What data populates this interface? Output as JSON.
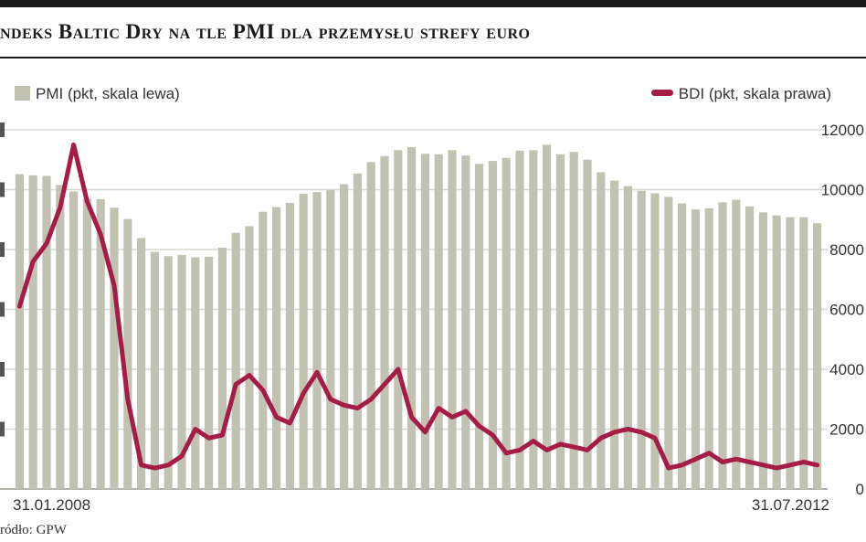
{
  "title": "ndeks Baltic Dry na tle PMI dla przemysłu strefy euro",
  "source": "ródło: GPW",
  "colors": {
    "pmi": "#c2c2b2",
    "bdi": "#a51c45",
    "grid": "#d8d8d0",
    "text": "#333333"
  },
  "chart_data": {
    "type": "bar",
    "legend_placement": "top",
    "grid": true,
    "series": [
      {
        "name": "PMI (pkt, skala lewa)",
        "type": "bar",
        "axis": "left",
        "values": [
          52.6,
          52.4,
          52.3,
          50.8,
          49.7,
          48.5,
          48.4,
          47.0,
          45.1,
          41.9,
          39.6,
          38.9,
          39.1,
          38.7,
          38.8,
          40.3,
          42.8,
          43.9,
          46.3,
          47.1,
          47.8,
          49.3,
          49.6,
          49.9,
          50.9,
          52.7,
          54.6,
          55.6,
          56.6,
          57.1,
          56.0,
          55.9,
          56.6,
          55.7,
          54.3,
          54.8,
          55.3,
          56.5,
          56.6,
          57.5,
          55.9,
          56.3,
          55.0,
          52.9,
          51.5,
          50.6,
          49.8,
          49.4,
          48.8,
          47.7,
          46.7,
          46.9,
          47.9,
          48.3,
          47.2,
          46.2,
          45.7,
          45.4,
          45.4,
          44.4
        ]
      },
      {
        "name": "BDI (pkt, skala prawa)",
        "type": "line",
        "axis": "right",
        "values": [
          6100,
          7600,
          8200,
          9400,
          11500,
          9600,
          8500,
          6800,
          3000,
          800,
          700,
          800,
          1100,
          2000,
          1700,
          1800,
          3500,
          3800,
          3300,
          2400,
          2200,
          3200,
          3900,
          3000,
          2800,
          2700,
          3000,
          3500,
          4000,
          2400,
          1900,
          2700,
          2400,
          2600,
          2100,
          1800,
          1200,
          1300,
          1600,
          1300,
          1500,
          1400,
          1300,
          1700,
          1900,
          2000,
          1900,
          1700,
          700,
          800,
          1000,
          1200,
          900,
          1000,
          900,
          800,
          700,
          800,
          900,
          800
        ]
      }
    ],
    "x_start_label": "31.01.2008",
    "x_end_label": "31.07.2012",
    "y_left": {
      "range": [
        0,
        60
      ]
    },
    "y_right": {
      "range": [
        0,
        12000
      ],
      "ticks": [
        "0",
        "2000",
        "4000",
        "6000",
        "8000",
        "10000",
        "12000"
      ]
    }
  }
}
